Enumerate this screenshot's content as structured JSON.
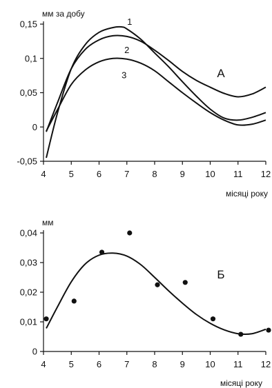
{
  "chart_data": [
    {
      "type": "line",
      "panel_label": "А",
      "ylabel": "мм за добу",
      "xlabel": "місяці року",
      "x_ticks": [
        4,
        5,
        6,
        7,
        8,
        9,
        10,
        11,
        12
      ],
      "y_ticks": [
        -0.05,
        0,
        0.05,
        0.1,
        0.15
      ],
      "y_tick_labels": [
        "-0,05",
        "0",
        "0,05",
        "0,1",
        "0,15"
      ],
      "xlim": [
        4,
        12
      ],
      "ylim": [
        -0.05,
        0.15
      ],
      "grid": false,
      "series": [
        {
          "name": "1",
          "x": [
            4.1,
            4.5,
            5,
            5.5,
            6,
            6.5,
            6.8,
            7,
            7.5,
            8,
            8.5,
            9,
            9.5,
            10,
            10.5,
            11,
            11.5,
            12
          ],
          "y": [
            -0.045,
            0.02,
            0.085,
            0.12,
            0.138,
            0.145,
            0.146,
            0.143,
            0.128,
            0.108,
            0.088,
            0.066,
            0.045,
            0.026,
            0.013,
            0.01,
            0.014,
            0.021
          ]
        },
        {
          "name": "2",
          "x": [
            4.1,
            4.5,
            5,
            5.5,
            6,
            6.5,
            7,
            7.5,
            8,
            8.5,
            9,
            9.5,
            10,
            10.5,
            11,
            11.5,
            12
          ],
          "y": [
            -0.007,
            0.035,
            0.085,
            0.113,
            0.127,
            0.133,
            0.132,
            0.125,
            0.112,
            0.097,
            0.081,
            0.068,
            0.058,
            0.049,
            0.044,
            0.048,
            0.058
          ]
        },
        {
          "name": "3",
          "x": [
            4.1,
            4.5,
            5,
            5.5,
            6,
            6.5,
            7,
            7.5,
            8,
            8.5,
            9,
            9.5,
            10,
            10.5,
            11,
            11.5,
            12
          ],
          "y": [
            -0.006,
            0.025,
            0.062,
            0.083,
            0.095,
            0.1,
            0.099,
            0.093,
            0.082,
            0.066,
            0.05,
            0.035,
            0.021,
            0.01,
            0.003,
            0.004,
            0.01
          ]
        }
      ],
      "series_label_positions": [
        {
          "name": "1",
          "x": 7.1,
          "y": 0.153
        },
        {
          "name": "2",
          "x": 7.0,
          "y": 0.112
        },
        {
          "name": "3",
          "x": 6.9,
          "y": 0.075
        }
      ]
    },
    {
      "type": "scatter",
      "panel_label": "Б",
      "ylabel": "мм",
      "xlabel": "місяці року",
      "x_ticks": [
        4,
        5,
        6,
        7,
        8,
        9,
        10,
        11,
        12
      ],
      "y_ticks": [
        0,
        0.01,
        0.02,
        0.03,
        0.04
      ],
      "y_tick_labels": [
        "0",
        "0,01",
        "0,02",
        "0,03",
        "0,04"
      ],
      "xlim": [
        4,
        12
      ],
      "ylim": [
        0,
        0.04
      ],
      "grid": false,
      "points": {
        "x": [
          4.1,
          5.1,
          6.1,
          7.1,
          8.1,
          9.1,
          10.1,
          11.1,
          12.1
        ],
        "y": [
          0.011,
          0.017,
          0.0335,
          0.04,
          0.0225,
          0.0233,
          0.011,
          0.0058,
          0.0072
        ]
      },
      "fit": {
        "x": [
          4.1,
          4.5,
          5,
          5.5,
          6,
          6.5,
          7,
          7.5,
          8,
          8.5,
          9,
          9.5,
          10,
          10.5,
          11,
          11.5,
          12
        ],
        "y": [
          0.0078,
          0.015,
          0.0235,
          0.0295,
          0.0325,
          0.0332,
          0.0322,
          0.0293,
          0.025,
          0.0205,
          0.0163,
          0.0125,
          0.0095,
          0.0073,
          0.006,
          0.006,
          0.0075
        ]
      }
    }
  ]
}
